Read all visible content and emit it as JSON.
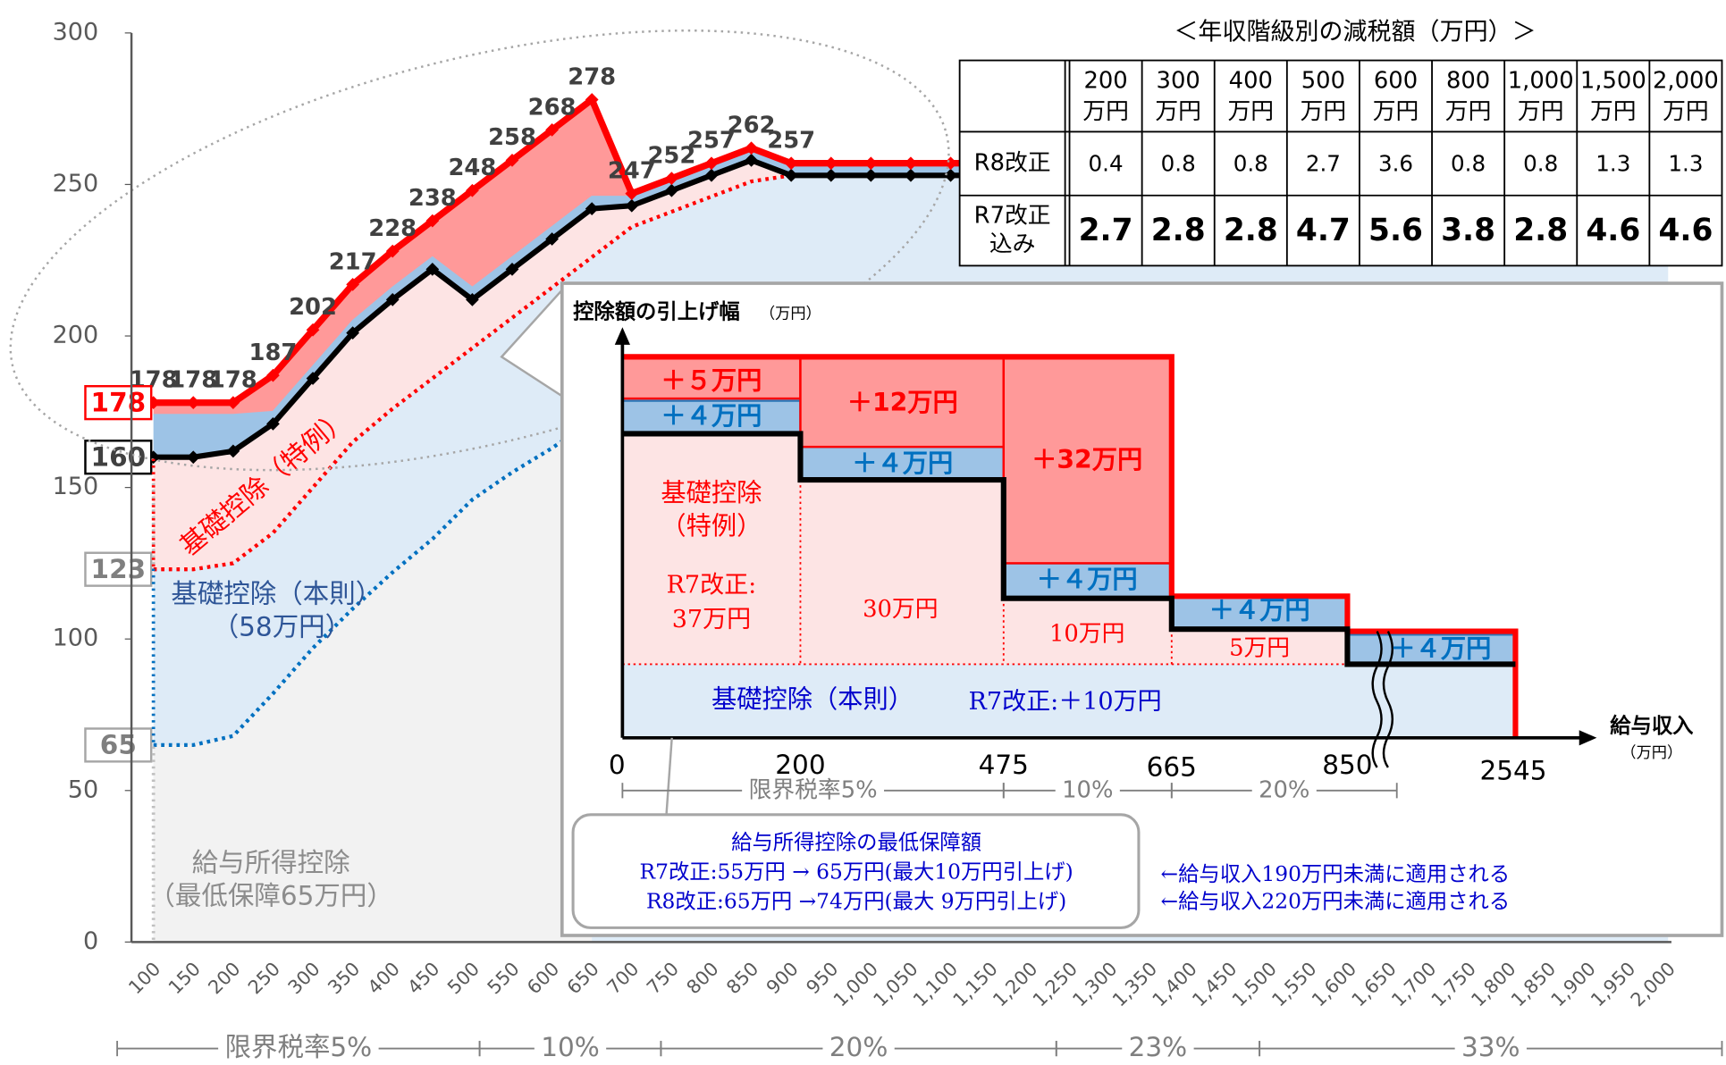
{
  "chart_data": {
    "type": "line",
    "categories": [
      "100",
      "150",
      "200",
      "250",
      "300",
      "350",
      "400",
      "450",
      "500",
      "550",
      "600",
      "650",
      "700",
      "750",
      "800",
      "850",
      "900",
      "950",
      "1,000",
      "1,050",
      "1,100",
      "1,150",
      "1,200",
      "1,250",
      "1,300",
      "1,350",
      "1,400",
      "1,450",
      "1,500",
      "1,550",
      "1,600",
      "1,650",
      "1,700",
      "1,750",
      "1,800",
      "1,850",
      "1,900",
      "1,950",
      "2,000"
    ],
    "ylim": [
      0,
      300
    ],
    "yticks": [
      0,
      50,
      100,
      150,
      200,
      250,
      300
    ],
    "series": [
      {
        "color": "#ff0000",
        "style": "solid",
        "values": [
          178,
          178,
          178,
          187,
          202,
          217,
          228,
          238,
          248,
          258,
          268,
          278,
          247,
          252,
          257,
          262,
          257,
          257,
          257,
          257,
          257,
          257,
          257,
          257,
          257,
          257,
          257,
          257,
          257,
          257,
          257,
          257,
          257,
          257,
          257,
          257,
          257,
          257,
          257
        ],
        "value_labels": [
          "178",
          "178",
          "178",
          "187",
          "202",
          "217",
          "228",
          "238",
          "248",
          "258",
          "268",
          "278",
          "247",
          "252",
          "257",
          "262",
          "257",
          null,
          null,
          null,
          null,
          null,
          null,
          null,
          null,
          null,
          null,
          null,
          null,
          null,
          null,
          null,
          null,
          null,
          null,
          null,
          null,
          null,
          null
        ]
      },
      {
        "color": "#9dc3e6",
        "style": "band",
        "values": [
          174,
          174,
          174,
          175,
          190,
          205,
          216,
          226,
          216,
          226,
          236,
          246,
          246,
          251,
          256,
          261,
          256,
          256,
          256,
          256,
          256,
          256,
          256,
          256,
          256,
          256,
          256,
          256,
          256,
          256,
          256,
          256,
          256,
          256,
          256,
          256,
          256,
          256,
          256
        ]
      },
      {
        "color": "#000000",
        "style": "solid",
        "values": [
          160,
          160,
          162,
          171,
          186,
          201,
          212,
          222,
          212,
          222,
          232,
          242,
          243,
          248,
          253,
          258,
          253,
          253,
          253,
          253,
          253,
          253,
          253,
          253,
          253,
          253,
          253,
          253,
          253,
          253,
          253,
          253,
          253,
          253,
          253,
          253,
          253,
          253,
          253
        ]
      },
      {
        "color": "#ff0000",
        "style": "dotted",
        "values": [
          123,
          123,
          125,
          135,
          150,
          165,
          176,
          186,
          196,
          206,
          216,
          226,
          236,
          241,
          246,
          251,
          253,
          null,
          null,
          null,
          null,
          null,
          null,
          null,
          null,
          null,
          null,
          null,
          null,
          null,
          null,
          null,
          null,
          null,
          null,
          null,
          null,
          null,
          null
        ]
      },
      {
        "color": "#0070c0",
        "style": "dotted",
        "values": [
          65,
          65,
          68,
          82,
          97,
          110,
          122,
          133,
          146,
          155,
          163,
          172,
          null,
          null,
          null,
          null,
          null,
          null,
          null,
          null,
          null,
          null,
          null,
          null,
          null,
          null,
          null,
          null,
          null,
          null,
          null,
          null,
          null,
          null,
          null,
          null,
          null,
          null,
          null
        ]
      }
    ],
    "annotations": {
      "special": "基礎控除（特例）",
      "basic": "基礎控除（本則）",
      "basic_amount": "（58万円）",
      "salary": "給与所得控除",
      "salary_min": "（最低保障65万円）"
    },
    "rate_bands": [
      "限界税率5%",
      "10%",
      "20%",
      "23%",
      "33%"
    ]
  },
  "table": {
    "title": "＜年収階級別の減税額（万円）＞",
    "columns": [
      {
        "amount": "200",
        "unit": "万円"
      },
      {
        "amount": "300",
        "unit": "万円"
      },
      {
        "amount": "400",
        "unit": "万円"
      },
      {
        "amount": "500",
        "unit": "万円"
      },
      {
        "amount": "600",
        "unit": "万円"
      },
      {
        "amount": "800",
        "unit": "万円"
      },
      {
        "amount": "1,000",
        "unit": "万円"
      },
      {
        "amount": "1,500",
        "unit": "万円"
      },
      {
        "amount": "2,000",
        "unit": "万円"
      }
    ],
    "rows": [
      {
        "label": [
          "R8改正"
        ],
        "values": [
          0.4,
          0.8,
          0.8,
          2.7,
          3.6,
          0.8,
          0.8,
          1.3,
          1.3
        ]
      },
      {
        "label": [
          "R7改正",
          "込み"
        ],
        "values": [
          2.7,
          2.8,
          2.8,
          4.7,
          5.6,
          3.8,
          2.8,
          4.6,
          4.6
        ]
      }
    ]
  },
  "inset": {
    "title": "控除額の引上げ幅",
    "title_unit": "（万円）",
    "steps": [
      "＋５万円",
      "＋４万円",
      "＋12万円",
      "＋４万円",
      "＋32万円",
      "＋４万円",
      "＋４万円",
      "＋４万円"
    ],
    "special": [
      "基礎控除",
      "（特例）"
    ],
    "r7": [
      "R7改正:",
      "37万円"
    ],
    "amounts": [
      "30万円",
      "10万円",
      "5万円"
    ],
    "basic": "基礎控除（本則）",
    "basic_r7": "R7改正:＋10万円",
    "xticks": [
      "0",
      "200",
      "475",
      "665",
      "850",
      "2545"
    ],
    "xlabel": "給与収入",
    "xunit": "（万円）",
    "rate_bands": [
      "限界税率5%",
      "10%",
      "20%"
    ],
    "note_title": "給与所得控除の最低保障額",
    "notes": [
      "R7改正:55万円 → 65万円(最大10万円引上げ)",
      "R8改正:65万円 →74万円(最大 9万円引上げ)"
    ],
    "applies": [
      "←給与収入190万円未満に適用される",
      "←給与収入220万円未満に適用される"
    ]
  }
}
